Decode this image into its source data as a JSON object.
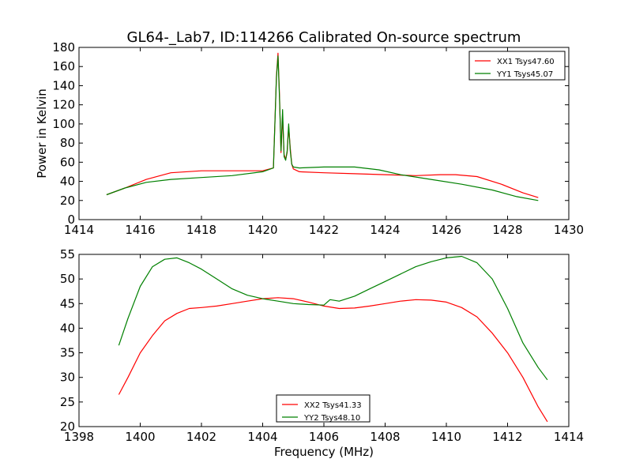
{
  "colors": {
    "red": "#ff0000",
    "green": "#008000",
    "axis": "#000000"
  },
  "chart_data": [
    {
      "type": "line",
      "title": "GL64-_Lab7, ID:114266 Calibrated On-source spectrum",
      "xlabel": "",
      "ylabel": "Power in Kelvin",
      "xlim": [
        1414,
        1430
      ],
      "ylim": [
        0,
        180
      ],
      "xticks": [
        1414,
        1416,
        1418,
        1420,
        1422,
        1424,
        1426,
        1428,
        1430
      ],
      "yticks": [
        0,
        20,
        40,
        60,
        80,
        100,
        120,
        140,
        160,
        180
      ],
      "grid": false,
      "legend_position": "top-right",
      "series": [
        {
          "name": "XX1 Tsys47.60",
          "color": "#ff0000",
          "x": [
            1414.9,
            1415.5,
            1416.2,
            1417.0,
            1418.0,
            1419.0,
            1420.0,
            1420.35,
            1420.45,
            1420.5,
            1420.55,
            1420.6,
            1420.65,
            1420.7,
            1420.75,
            1420.8,
            1420.85,
            1420.9,
            1420.95,
            1421.0,
            1421.2,
            1422.0,
            1423.0,
            1424.0,
            1425.0,
            1425.8,
            1426.3,
            1427.0,
            1427.8,
            1428.5,
            1429.0
          ],
          "y": [
            26,
            33,
            42,
            49,
            51,
            51,
            51,
            54,
            150,
            174,
            130,
            70,
            108,
            68,
            63,
            70,
            97,
            75,
            58,
            53,
            50,
            49,
            48,
            47,
            46,
            47,
            47,
            45,
            37,
            28,
            23
          ]
        },
        {
          "name": "YY1 Tsys45.07",
          "color": "#008000",
          "x": [
            1414.9,
            1415.5,
            1416.2,
            1417.0,
            1418.0,
            1419.0,
            1420.0,
            1420.35,
            1420.45,
            1420.5,
            1420.55,
            1420.6,
            1420.65,
            1420.7,
            1420.75,
            1420.8,
            1420.85,
            1420.9,
            1420.95,
            1421.0,
            1421.2,
            1422.0,
            1423.0,
            1423.8,
            1424.5,
            1425.5,
            1426.5,
            1427.5,
            1428.3,
            1429.0
          ],
          "y": [
            26,
            33,
            39,
            42,
            44,
            46,
            50,
            54,
            148,
            171,
            127,
            72,
            115,
            66,
            62,
            72,
            100,
            72,
            58,
            55,
            54,
            55,
            55,
            52,
            47,
            42,
            37,
            31,
            24,
            20
          ]
        }
      ]
    },
    {
      "type": "line",
      "title": "",
      "xlabel": "Frequency (MHz)",
      "ylabel": "",
      "xlim": [
        1398,
        1414
      ],
      "ylim": [
        20,
        55
      ],
      "xticks": [
        1398,
        1400,
        1402,
        1404,
        1406,
        1408,
        1410,
        1412,
        1414
      ],
      "yticks": [
        20,
        25,
        30,
        35,
        40,
        45,
        50,
        55
      ],
      "grid": false,
      "legend_position": "bottom-center",
      "series": [
        {
          "name": "XX2 Tsys41.33",
          "color": "#ff0000",
          "x": [
            1399.3,
            1399.6,
            1400.0,
            1400.4,
            1400.8,
            1401.2,
            1401.6,
            1402.0,
            1402.5,
            1403.0,
            1403.5,
            1404.0,
            1404.5,
            1405.0,
            1405.5,
            1406.0,
            1406.5,
            1407.0,
            1407.5,
            1408.0,
            1408.5,
            1409.0,
            1409.5,
            1410.0,
            1410.5,
            1411.0,
            1411.5,
            1412.0,
            1412.5,
            1413.0,
            1413.3
          ],
          "y": [
            26.5,
            30,
            35,
            38.5,
            41.5,
            43,
            44,
            44.2,
            44.5,
            45,
            45.5,
            46,
            46.2,
            46,
            45.3,
            44.5,
            44,
            44.1,
            44.5,
            45,
            45.5,
            45.8,
            45.7,
            45.3,
            44.2,
            42.3,
            39,
            35,
            30,
            24,
            21
          ]
        },
        {
          "name": "YY2 Tsys48.10",
          "color": "#008000",
          "x": [
            1399.3,
            1399.6,
            1400.0,
            1400.4,
            1400.8,
            1401.2,
            1401.6,
            1402.0,
            1402.5,
            1403.0,
            1403.5,
            1404.0,
            1404.5,
            1405.0,
            1405.5,
            1406.0,
            1406.2,
            1406.5,
            1407.0,
            1407.5,
            1408.0,
            1408.5,
            1409.0,
            1409.5,
            1410.0,
            1410.5,
            1411.0,
            1411.5,
            1412.0,
            1412.5,
            1413.0,
            1413.3
          ],
          "y": [
            36.5,
            42,
            48.5,
            52.5,
            54,
            54.3,
            53.3,
            52,
            50,
            48,
            46.7,
            46,
            45.5,
            45,
            44.8,
            44.7,
            45.8,
            45.5,
            46.5,
            48,
            49.5,
            51,
            52.5,
            53.5,
            54.3,
            54.6,
            53.3,
            50,
            44,
            37,
            32,
            29.5
          ]
        }
      ]
    }
  ]
}
